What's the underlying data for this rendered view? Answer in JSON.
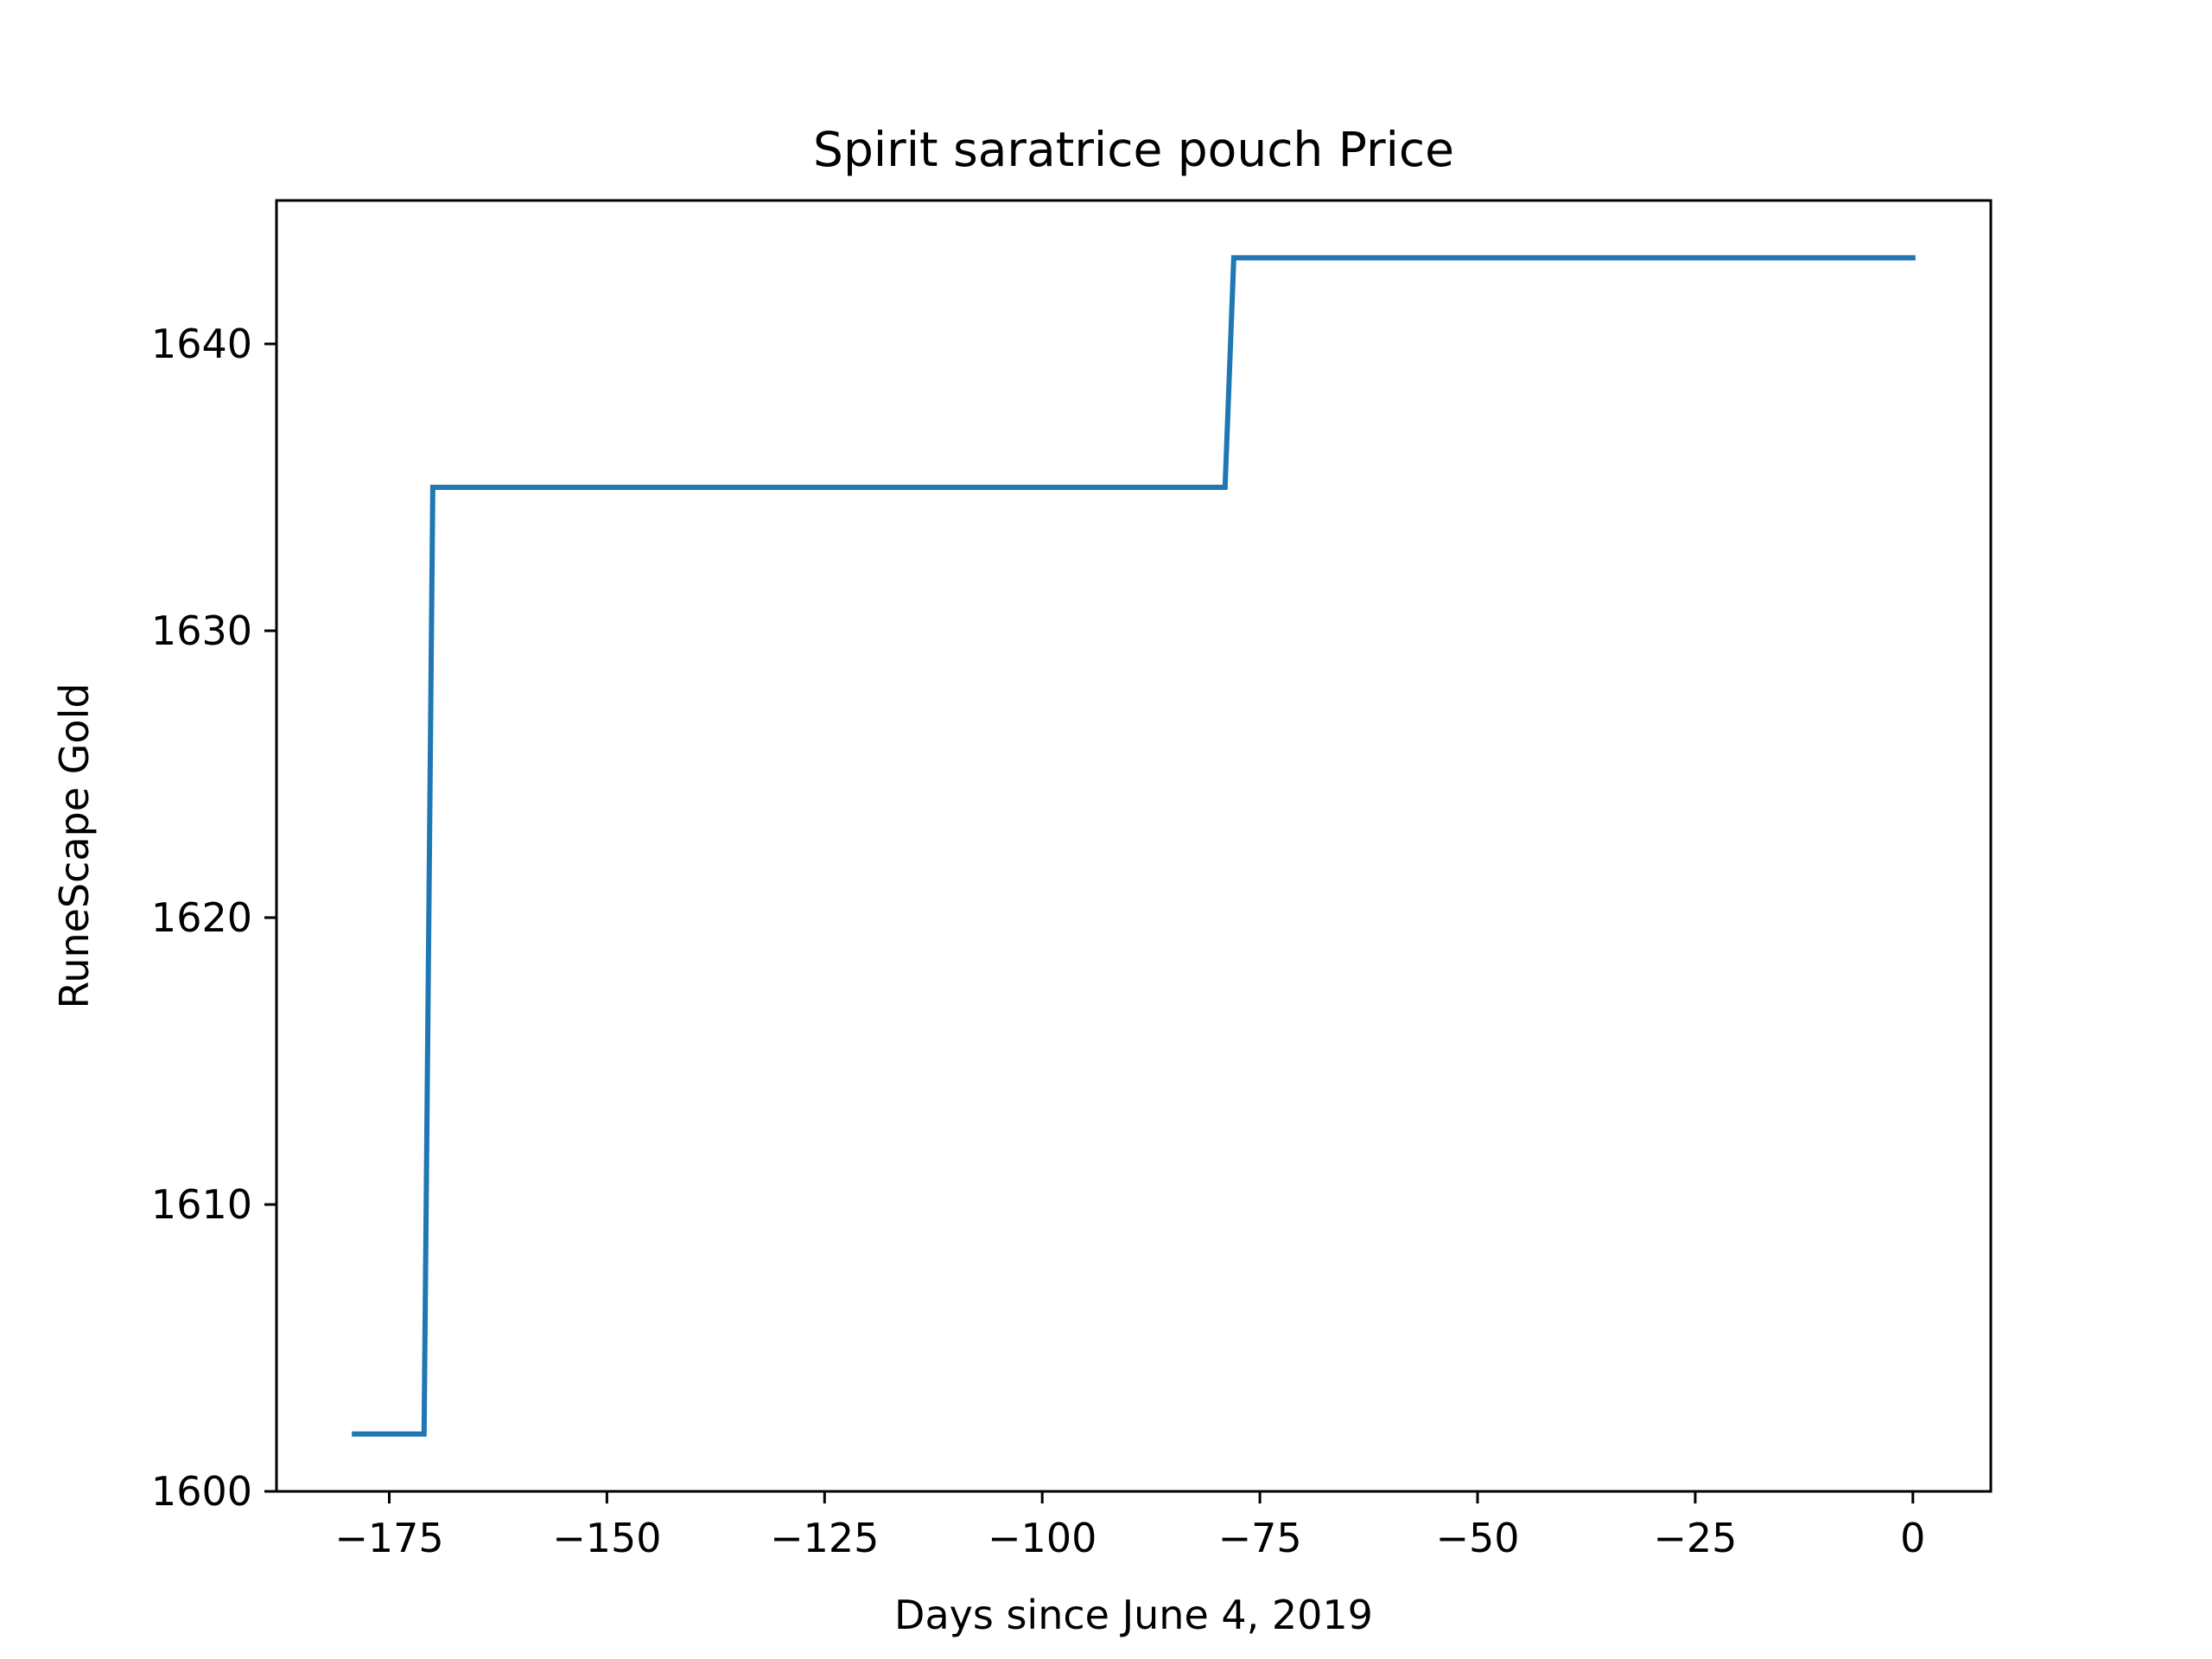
{
  "chart_data": {
    "type": "line",
    "title": "Spirit saratrice pouch Price",
    "xlabel": "Days since June 4, 2019",
    "ylabel": "RuneScape Gold",
    "xlim": [
      -187.95,
      8.95
    ],
    "ylim": [
      1600,
      1645
    ],
    "xticks": [
      -175,
      -150,
      -125,
      -100,
      -75,
      -50,
      -25,
      0
    ],
    "xtick_labels": [
      "−175",
      "−150",
      "−125",
      "−100",
      "−75",
      "−50",
      "−25",
      "0"
    ],
    "yticks": [
      1600,
      1610,
      1620,
      1630,
      1640
    ],
    "ytick_labels": [
      "1600",
      "1610",
      "1620",
      "1630",
      "1640"
    ],
    "grid": false,
    "series": [
      {
        "color": "#1f77b4",
        "x": [
          -179,
          -171,
          -170,
          -79,
          -78,
          0
        ],
        "y": [
          1602,
          1602,
          1635,
          1635,
          1643,
          1643
        ]
      }
    ]
  }
}
